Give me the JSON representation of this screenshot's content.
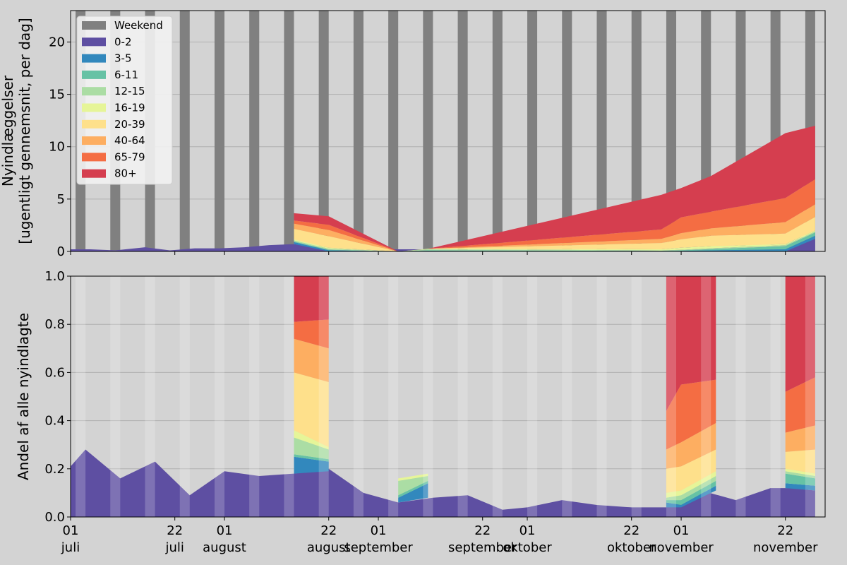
{
  "chart_data": [
    {
      "type": "area",
      "ylabel_lines": [
        "Nyindlæggelser",
        "[ugentligt gennemsnit, per dag]"
      ],
      "ylim": [
        0,
        23
      ],
      "yticks": [
        0,
        5,
        10,
        15,
        20
      ],
      "grid": true,
      "legend_position": "top-left",
      "weekend_label": "Weekend",
      "weekend_color": "#808080",
      "groups": [
        "0-2",
        "3-5",
        "6-11",
        "12-15",
        "16-19",
        "20-39",
        "40-64",
        "65-79",
        "80+"
      ],
      "colors": [
        "#5e4fa2",
        "#3288bd",
        "#66c2a5",
        "#abdda4",
        "#e6f598",
        "#fee08b",
        "#fdae61",
        "#f46d43",
        "#d53e4f"
      ],
      "series": [
        {
          "name": "0-2",
          "x": [
            "07-01",
            "07-05",
            "07-10",
            "07-16",
            "07-21",
            "07-26",
            "07-31",
            "08-05",
            "08-10",
            "08-15",
            "08-20",
            "08-25",
            "08-30",
            "09-04",
            "09-09",
            "09-14",
            "09-19",
            "09-24",
            "09-29",
            "10-04",
            "10-09",
            "10-14",
            "10-19",
            "10-24",
            "10-29",
            "11-03",
            "11-08",
            "11-13",
            "11-18",
            "11-23",
            "11-28"
          ],
          "values": [
            0.2,
            0.2,
            0.1,
            0.4,
            0.1,
            0.3,
            0.3,
            0.4,
            0.6,
            0.7,
            0.4,
            0.3,
            0.2,
            0.2,
            0.2,
            0.1,
            0.1,
            0.1,
            0.1,
            0.2,
            0.2,
            0.1,
            0.2,
            0.3,
            0.9,
            0.8,
            0.4,
            0.6,
            0.4,
            1.5,
            1.2
          ]
        },
        {
          "name": "3-5",
          "x": [
            "08-15",
            "08-22",
            "09-05",
            "09-11",
            "10-28",
            "11-01",
            "11-07",
            "11-22",
            "11-28"
          ],
          "values": [
            0.2,
            0.1,
            0,
            0.05,
            0,
            0.05,
            0.1,
            0.2,
            0.3
          ]
        },
        {
          "name": "6-11",
          "x": [
            "08-15",
            "08-22",
            "09-05",
            "09-11",
            "10-28",
            "11-01",
            "11-07",
            "11-22",
            "11-28"
          ],
          "values": [
            0.05,
            0.05,
            0,
            0.05,
            0.05,
            0.05,
            0.1,
            0.3,
            0.3
          ]
        },
        {
          "name": "12-15",
          "x": [
            "08-15",
            "08-22",
            "09-05",
            "09-11",
            "10-28",
            "11-01",
            "11-07",
            "11-22",
            "11-28"
          ],
          "values": [
            0.1,
            0.1,
            0,
            0.1,
            0.05,
            0.05,
            0.1,
            0.1,
            0.1
          ]
        },
        {
          "name": "16-19",
          "x": [
            "08-15",
            "08-22",
            "09-05",
            "09-11",
            "10-28",
            "11-01",
            "11-07",
            "11-22",
            "11-28"
          ],
          "values": [
            0.1,
            0.1,
            0,
            0.05,
            0.1,
            0.2,
            0.2,
            0.1,
            0.1
          ]
        },
        {
          "name": "20-39",
          "x": [
            "08-15",
            "08-22",
            "09-05",
            "09-11",
            "10-28",
            "11-01",
            "11-07",
            "11-22",
            "11-28"
          ],
          "values": [
            1.0,
            1.1,
            0,
            0,
            0.6,
            0.8,
            1.0,
            1.0,
            1.3
          ]
        },
        {
          "name": "40-64",
          "x": [
            "08-15",
            "08-22",
            "09-05",
            "09-11",
            "10-28",
            "11-01",
            "11-07",
            "11-22",
            "11-28"
          ],
          "values": [
            0.5,
            0.6,
            0,
            0,
            0.4,
            0.6,
            0.7,
            1.1,
            1.2
          ]
        },
        {
          "name": "65-79",
          "x": [
            "08-15",
            "08-22",
            "09-05",
            "09-11",
            "10-28",
            "11-01",
            "11-07",
            "11-22",
            "11-28"
          ],
          "values": [
            0.3,
            0.5,
            0,
            0,
            0.9,
            1.5,
            1.6,
            2.3,
            2.4
          ]
        },
        {
          "name": "80+",
          "x": [
            "08-15",
            "08-22",
            "09-05",
            "09-11",
            "10-28",
            "11-01",
            "11-07",
            "11-22",
            "11-28"
          ],
          "values": [
            0.7,
            0.8,
            0,
            0,
            3.3,
            2.8,
            3.4,
            6.2,
            5.1
          ]
        }
      ]
    },
    {
      "type": "area",
      "ylabel_lines": [
        "Andel af alle nyindlagte"
      ],
      "ylim": [
        0,
        1.0
      ],
      "yticks": [
        "0.0",
        "0.2",
        "0.4",
        "0.6",
        "0.8",
        "1.0"
      ],
      "grid": true,
      "base_series": {
        "name": "0-2",
        "x": [
          "07-01",
          "07-04",
          "07-11",
          "07-18",
          "07-25",
          "08-01",
          "08-08",
          "08-15",
          "08-22",
          "08-29",
          "09-05",
          "09-12",
          "09-19",
          "09-26",
          "10-01",
          "10-08",
          "10-15",
          "10-22",
          "10-29",
          "11-05",
          "11-12",
          "11-19",
          "11-23",
          "11-28"
        ],
        "values": [
          0.21,
          0.28,
          0.16,
          0.23,
          0.09,
          0.19,
          0.17,
          0.18,
          0.2,
          0.1,
          0.06,
          0.08,
          0.09,
          0.03,
          0.04,
          0.07,
          0.05,
          0.04,
          0.04,
          0.11,
          0.07,
          0.12,
          0.12,
          0.11
        ]
      },
      "blocks": [
        {
          "x": [
            "08-15",
            "08-22"
          ],
          "cum": [
            [
              0.18,
              0.19
            ],
            [
              0.25,
              0.23
            ],
            [
              0.26,
              0.24
            ],
            [
              0.33,
              0.28
            ],
            [
              0.36,
              0.29
            ],
            [
              0.6,
              0.56
            ],
            [
              0.74,
              0.7
            ],
            [
              0.81,
              0.82
            ],
            [
              1.0,
              1.0
            ]
          ]
        },
        {
          "x": [
            "10-29",
            "11-01",
            "11-08"
          ],
          "cum": [
            [
              0.04,
              0.04,
              0.11
            ],
            [
              0.06,
              0.05,
              0.13
            ],
            [
              0.07,
              0.07,
              0.15
            ],
            [
              0.08,
              0.09,
              0.17
            ],
            [
              0.1,
              0.11,
              0.19
            ],
            [
              0.2,
              0.21,
              0.28
            ],
            [
              0.28,
              0.31,
              0.39
            ],
            [
              0.44,
              0.55,
              0.57
            ],
            [
              1.0,
              1.0,
              1.0
            ]
          ]
        },
        {
          "x": [
            "11-22",
            "11-28"
          ],
          "cum": [
            [
              0.12,
              0.11
            ],
            [
              0.14,
              0.13
            ],
            [
              0.18,
              0.16
            ],
            [
              0.19,
              0.17
            ],
            [
              0.2,
              0.18
            ],
            [
              0.27,
              0.28
            ],
            [
              0.35,
              0.38
            ],
            [
              0.52,
              0.58
            ],
            [
              1.0,
              1.0
            ]
          ]
        },
        {
          "x": [
            "09-05",
            "09-11"
          ],
          "cum": [
            [
              0.06,
              0.08
            ],
            [
              0.08,
              0.14
            ],
            [
              0.09,
              0.15
            ],
            [
              0.15,
              0.17
            ],
            [
              0.16,
              0.18
            ]
          ]
        }
      ]
    }
  ],
  "x_axis": {
    "ticks": [
      {
        "date": "07-01",
        "day": "01",
        "month": "juli"
      },
      {
        "date": "07-22",
        "day": "22",
        "month": "juli"
      },
      {
        "date": "08-01",
        "day": "01",
        "month": "august"
      },
      {
        "date": "08-22",
        "day": "22",
        "month": "august"
      },
      {
        "date": "09-01",
        "day": "01",
        "month": "september"
      },
      {
        "date": "09-22",
        "day": "22",
        "month": "september"
      },
      {
        "date": "10-01",
        "day": "01",
        "month": "oktober"
      },
      {
        "date": "10-22",
        "day": "22",
        "month": "oktober"
      },
      {
        "date": "11-01",
        "day": "01",
        "month": "november"
      },
      {
        "date": "11-22",
        "day": "22",
        "month": "november"
      }
    ],
    "range": [
      "07-01",
      "11-30"
    ]
  },
  "weekends": [
    "07-02",
    "07-09",
    "07-16",
    "07-23",
    "07-30",
    "08-06",
    "08-13",
    "08-20",
    "08-27",
    "09-03",
    "09-10",
    "09-17",
    "09-24",
    "10-01",
    "10-08",
    "10-15",
    "10-22",
    "10-29",
    "11-05",
    "11-12",
    "11-19",
    "11-26"
  ]
}
